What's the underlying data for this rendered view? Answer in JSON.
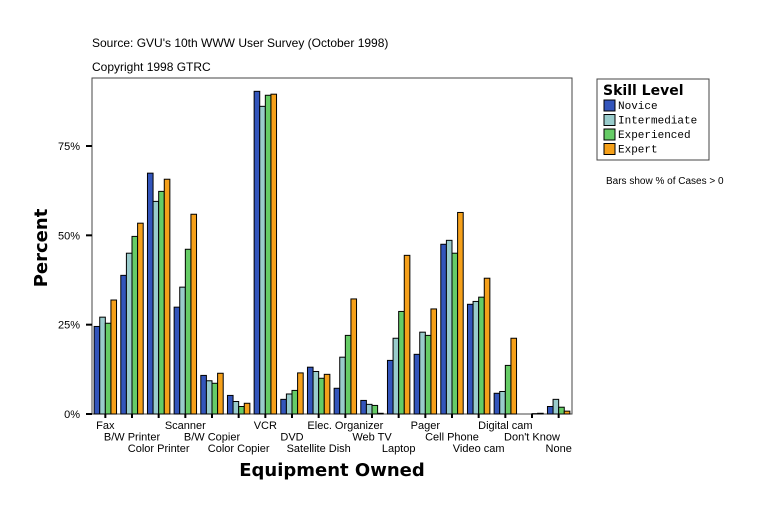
{
  "header": {
    "source": "Source: GVU's 10th WWW User Survey (October 1998)",
    "copyright": "Copyright 1998 GTRC"
  },
  "note": "Bars show % of Cases > 0",
  "chart_data": {
    "type": "bar",
    "xlabel": "Equipment Owned",
    "ylabel": "Percent",
    "ylim": [
      0,
      93
    ],
    "yticks": [
      0,
      25,
      50,
      75
    ],
    "ytick_labels": [
      "0%",
      "25%",
      "50%",
      "75%"
    ],
    "grid": false,
    "legend": {
      "title": "Skill Level",
      "placement": "right"
    },
    "categories": [
      "Fax",
      "B/W Printer",
      "Color Printer",
      "Scanner",
      "B/W Copier",
      "Color Copier",
      "VCR",
      "DVD",
      "Satellite Dish",
      "Elec. Organizer",
      "Web TV",
      "Laptop",
      "Pager",
      "Cell Phone",
      "Video cam",
      "Digital cam",
      "Don't Know",
      "None"
    ],
    "series": [
      {
        "name": "Novice",
        "color": "#3355bb",
        "values": [
          24.5,
          38.8,
          67.4,
          29.9,
          10.8,
          5.2,
          90.3,
          4.1,
          13.1,
          7.2,
          3.8,
          15.0,
          16.7,
          47.5,
          30.7,
          5.8,
          0,
          2.1
        ]
      },
      {
        "name": "Intermediate",
        "color": "#99cccc",
        "values": [
          27.1,
          45.0,
          59.5,
          35.5,
          9.3,
          3.5,
          86.1,
          5.6,
          11.9,
          15.9,
          2.7,
          21.2,
          22.9,
          48.6,
          31.5,
          6.3,
          0,
          4.1
        ]
      },
      {
        "name": "Experienced",
        "color": "#66cc66",
        "values": [
          25.4,
          49.7,
          62.3,
          46.1,
          8.6,
          2.1,
          89.2,
          6.6,
          10.0,
          22.0,
          2.4,
          28.7,
          22.0,
          45.0,
          32.7,
          13.6,
          0.1,
          1.9
        ]
      },
      {
        "name": "Expert",
        "color": "#f5a01a",
        "values": [
          31.9,
          53.4,
          65.7,
          55.9,
          11.4,
          3.0,
          89.5,
          11.5,
          11.1,
          32.2,
          0.2,
          44.4,
          29.4,
          56.4,
          38.0,
          21.2,
          0.2,
          0.8
        ]
      }
    ]
  }
}
